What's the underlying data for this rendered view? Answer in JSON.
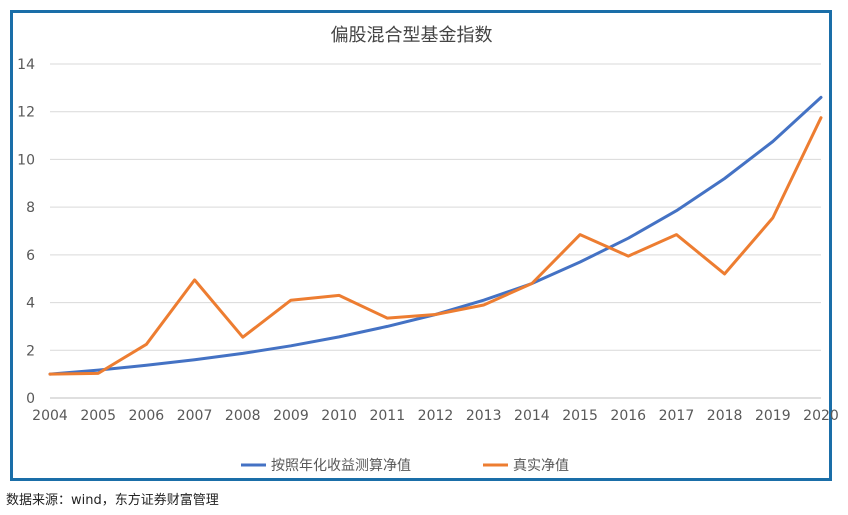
{
  "source_note": "数据来源：wind，东方证券财富管理",
  "chart_data": {
    "type": "line",
    "title": "偏股混合型基金指数",
    "xlabel": "",
    "ylabel": "",
    "categories": [
      "2004",
      "2005",
      "2006",
      "2007",
      "2008",
      "2009",
      "2010",
      "2011",
      "2012",
      "2013",
      "2014",
      "2015",
      "2016",
      "2017",
      "2018",
      "2019",
      "2020"
    ],
    "ylim": [
      0,
      14
    ],
    "yticks": [
      "0",
      "2",
      "4",
      "6",
      "8",
      "10",
      "12",
      "14"
    ],
    "grid": true,
    "legend_position": "bottom",
    "series": [
      {
        "name": "按照年化收益测算净值",
        "color": "#4472c4",
        "values": [
          1.0,
          1.17,
          1.37,
          1.6,
          1.87,
          2.19,
          2.56,
          3.0,
          3.5,
          4.1,
          4.8,
          5.7,
          6.7,
          7.85,
          9.2,
          10.75,
          12.6
        ]
      },
      {
        "name": "真实净值",
        "color": "#ed7d31",
        "values": [
          1.0,
          1.03,
          2.25,
          4.95,
          2.55,
          4.1,
          4.3,
          3.35,
          3.5,
          3.9,
          4.8,
          6.85,
          5.95,
          6.85,
          5.2,
          7.55,
          11.75
        ]
      }
    ]
  }
}
